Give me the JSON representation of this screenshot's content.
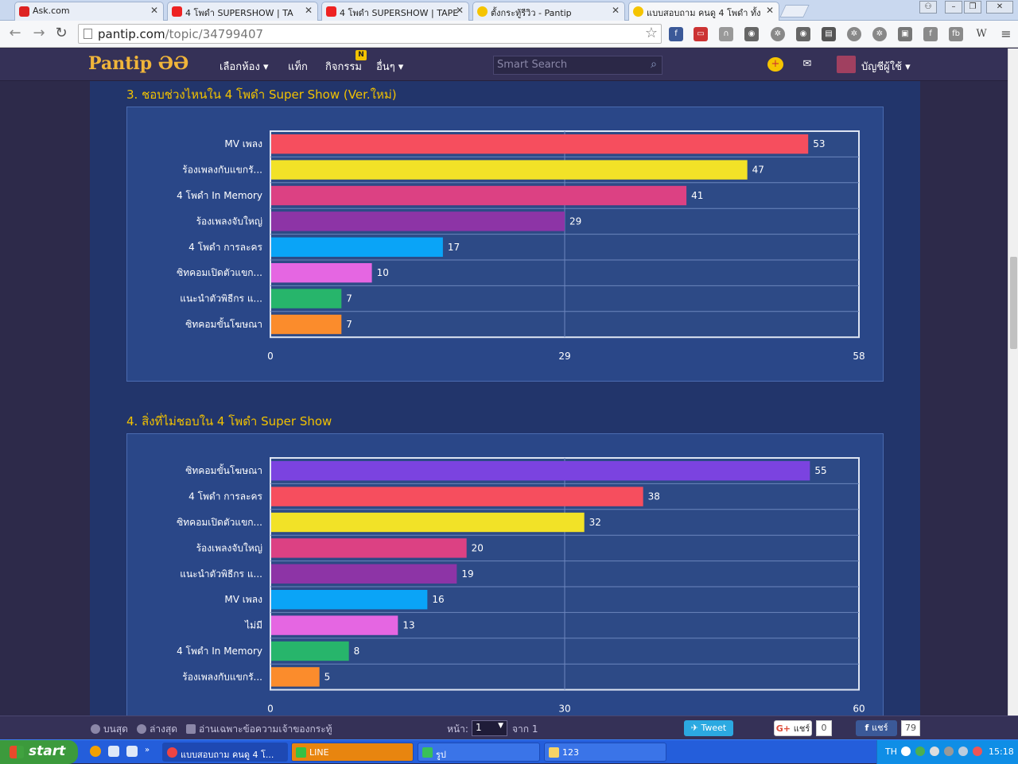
{
  "browser": {
    "tabs": [
      {
        "label": "Ask.com",
        "active": false
      },
      {
        "label": "4 โพดำ SUPERSHOW | TA",
        "active": false
      },
      {
        "label": "4 โพดำ SUPERSHOW | TAPE",
        "active": false
      },
      {
        "label": "ตั้งกระทู้รีวิว - Pantip",
        "active": false
      },
      {
        "label": "แบบสอบถาม คนดู 4 โพดำ ทั้ง",
        "active": true
      }
    ],
    "url_host": "pantip.com",
    "url_path": "/topic/34799407",
    "extensions": [
      "facebook-icon",
      "tv-icon",
      "headphones-icon",
      "camera-icon",
      "gear-icon",
      "camera-icon",
      "film-icon",
      "gear-icon",
      "gear-icon",
      "box-icon",
      "facebook-icon",
      "fb-icon",
      "wikipedia-icon"
    ],
    "ext_labels": {
      "fb": "fb",
      "w": "W"
    }
  },
  "site_nav": {
    "logo": "Pantip",
    "logo_mark": "ƏƏ",
    "items": [
      "เลือกห้อง ▾",
      "แท็ก",
      "กิจกรรม",
      "อื่นๆ ▾"
    ],
    "activity_badge": "N",
    "search_placeholder": "Smart Search",
    "account_label": "บัญชีผู้ใช้ ▾"
  },
  "sections": [
    {
      "title": "3. ชอบช่วงไหนใน 4 โพดำ Super Show (Ver.ใหม่)"
    },
    {
      "title": "4. สิ่งที่ไม่ชอบใน 4 โพดำ Super Show"
    }
  ],
  "chart_data": [
    {
      "type": "bar",
      "orientation": "horizontal",
      "categories": [
        "MV เพลง",
        "ร้องเพลงกับแขกรั...",
        "4 โพดำ In Memory",
        "ร้องเพลงจับใหญ่",
        "4 โพดำ การละคร",
        "ซิทคอมเปิดตัวแขก...",
        "แนะนำตัวพิธีกร แ...",
        "ซิทคอมขั้นโฆษณา"
      ],
      "values": [
        53,
        47,
        41,
        29,
        17,
        10,
        7,
        7
      ],
      "colors": [
        "#f64e5e",
        "#f2e227",
        "#dc4183",
        "#8d34a6",
        "#0aa4f7",
        "#e566e2",
        "#27b56b",
        "#fb8c2c"
      ],
      "xlim": [
        0,
        58
      ],
      "xticks": [
        "0",
        "29",
        "58"
      ],
      "grid": true
    },
    {
      "type": "bar",
      "orientation": "horizontal",
      "categories": [
        "ซิทคอมขั้นโฆษณา",
        "4 โพดำ การละคร",
        "ซิทคอมเปิดตัวแขก...",
        "ร้องเพลงจับใหญ่",
        "แนะนำตัวพิธีกร แ...",
        "MV เพลง",
        "ไม่มี",
        "4 โพดำ In Memory",
        "ร้องเพลงกับแขกรั..."
      ],
      "values": [
        55,
        38,
        32,
        20,
        19,
        16,
        13,
        8,
        5
      ],
      "colors": [
        "#7b43e0",
        "#f64e5e",
        "#f2e227",
        "#dc4183",
        "#8d34a6",
        "#0aa4f7",
        "#e566e2",
        "#27b56b",
        "#fb8c2c"
      ],
      "xlim": [
        0,
        60
      ],
      "xticks": [
        "0",
        "30",
        "60"
      ],
      "grid": true
    }
  ],
  "bottom_bar": {
    "top_link": "บนสุด",
    "bottom_link": "ล่างสุด",
    "owner_only": "อ่านเฉพาะข้อความเจ้าของกระทู้",
    "page_label": "หน้า:",
    "page_value": "1",
    "page_of": "จาก 1",
    "tweet": "Tweet",
    "gplus_label": "แชร์",
    "gplus_count": "0",
    "fb_label": "แชร์",
    "fb_count": "79"
  },
  "taskbar": {
    "start": "start",
    "tasks": [
      {
        "label": "แบบสอบถาม คนดู 4 โ...",
        "active": true
      },
      {
        "label": "LINE",
        "active": false
      },
      {
        "label": "รูป",
        "active": false
      },
      {
        "label": "123",
        "active": false
      }
    ],
    "lang": "TH",
    "time": "15:18"
  }
}
